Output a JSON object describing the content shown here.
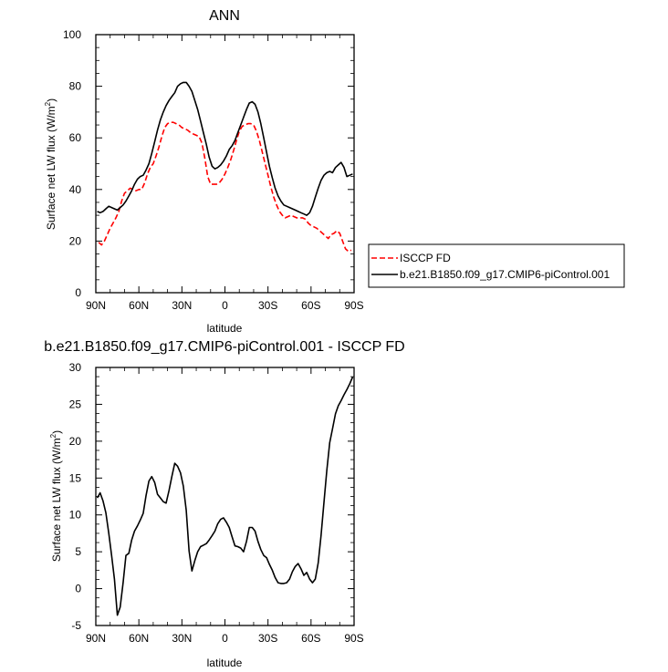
{
  "chart_data": [
    {
      "type": "line",
      "title": "ANN",
      "xlabel": "latitude",
      "ylabel": "Surface net LW flux (W/m²)",
      "ylabel_main": "Surface net LW flux (W/m",
      "ylabel_sup": "2",
      "ylabel_close": ")",
      "xlim": [
        90,
        -90
      ],
      "ylim": [
        0,
        100
      ],
      "xticks": [
        90,
        60,
        30,
        0,
        -30,
        -60,
        -90
      ],
      "xtick_labels": [
        "90N",
        "60N",
        "30N",
        "0",
        "30S",
        "60S",
        "90S"
      ],
      "yticks": [
        0,
        20,
        40,
        60,
        80,
        100
      ],
      "ytick_labels": [
        "0",
        "20",
        "40",
        "60",
        "80",
        "100"
      ],
      "legend": {
        "placement": "right",
        "entries": [
          "ISCCP FD",
          "b.e21.B1850.f09_g17.CMIP6-piControl.001"
        ]
      },
      "series": [
        {
          "name": "ISCCP FD",
          "color": "#ff0000",
          "dash": "dashed",
          "x": [
            88,
            86,
            84,
            82,
            80,
            78,
            76,
            74,
            72,
            70,
            68,
            66,
            64,
            62,
            60,
            58,
            56,
            54,
            52,
            50,
            48,
            46,
            44,
            42,
            40,
            38,
            36,
            34,
            32,
            30,
            28,
            26,
            24,
            22,
            20,
            18,
            16,
            14,
            12,
            10,
            8,
            6,
            4,
            2,
            0,
            -2,
            -4,
            -6,
            -8,
            -10,
            -12,
            -14,
            -16,
            -18,
            -20,
            -22,
            -24,
            -26,
            -28,
            -30,
            -32,
            -34,
            -36,
            -38,
            -40,
            -42,
            -44,
            -46,
            -48,
            -50,
            -52,
            -54,
            -56,
            -58,
            -60,
            -62,
            -64,
            -66,
            -68,
            -70,
            -72,
            -74,
            -76,
            -78,
            -80,
            -82,
            -84,
            -86,
            -88
          ],
          "values": [
            19.5,
            18.5,
            20.0,
            22.5,
            25.0,
            27.0,
            29.0,
            31.5,
            35.5,
            38.5,
            39.5,
            40.5,
            40.0,
            39.5,
            40.0,
            40.0,
            42.5,
            46.0,
            48.5,
            50.0,
            53.0,
            56.5,
            60.5,
            64.0,
            65.5,
            66.0,
            66.0,
            65.5,
            65.0,
            64.0,
            63.5,
            63.0,
            62.0,
            61.5,
            61.0,
            60.5,
            58.0,
            52.0,
            45.0,
            42.0,
            42.0,
            42.0,
            42.5,
            44.0,
            46.0,
            48.5,
            51.5,
            55.0,
            59.0,
            62.5,
            64.5,
            65.0,
            65.5,
            65.5,
            65.0,
            62.5,
            59.0,
            54.5,
            50.0,
            45.5,
            41.0,
            37.0,
            34.0,
            31.5,
            30.0,
            29.0,
            29.5,
            30.0,
            29.5,
            29.0,
            29.0,
            29.0,
            28.5,
            27.0,
            26.0,
            25.5,
            25.0,
            24.0,
            23.0,
            22.0,
            21.0,
            22.5,
            23.0,
            24.0,
            23.0,
            20.0,
            17.0,
            16.0,
            16.5
          ],
          "x_sparse": [
            89,
            87,
            85,
            83,
            81,
            79,
            77,
            75,
            73,
            71,
            69,
            67,
            65,
            63,
            61,
            59,
            57,
            55,
            53,
            51,
            49,
            47,
            45,
            43,
            41,
            39,
            37,
            35,
            33,
            31,
            29,
            27,
            25,
            23,
            21,
            19,
            17,
            15,
            13,
            11,
            9,
            7,
            5,
            3,
            1,
            -1,
            -3,
            -5,
            -7,
            -9,
            -11,
            -13,
            -15,
            -17,
            -19,
            -21,
            -23,
            -25,
            -27,
            -29,
            -31,
            -33,
            -35,
            -37,
            -39,
            -41,
            -43,
            -45,
            -47,
            -49,
            -51,
            -53,
            -55,
            -57,
            -59,
            -61,
            -63,
            -65,
            -67,
            -69,
            -71,
            -73,
            -75,
            -77,
            -79,
            -81,
            -83,
            -85,
            -87,
            -89
          ]
        },
        {
          "name": "b.e21.B1850.f09_g17.CMIP6-piControl.001",
          "color": "#000000",
          "dash": "solid",
          "x": [
            89,
            87,
            85,
            83,
            81,
            79,
            77,
            75,
            73,
            71,
            69,
            67,
            65,
            63,
            61,
            59,
            57,
            55,
            53,
            51,
            49,
            47,
            45,
            43,
            41,
            39,
            37,
            35,
            33,
            31,
            29,
            27,
            25,
            23,
            21,
            19,
            17,
            15,
            13,
            11,
            9,
            7,
            5,
            3,
            1,
            -1,
            -3,
            -5,
            -7,
            -9,
            -11,
            -13,
            -15,
            -17,
            -19,
            -21,
            -23,
            -25,
            -27,
            -29,
            -31,
            -33,
            -35,
            -37,
            -39,
            -41,
            -43,
            -45,
            -47,
            -49,
            -51,
            -53,
            -55,
            -57,
            -59,
            -61,
            -63,
            -65,
            -67,
            -69,
            -71,
            -73,
            -75,
            -77,
            -79,
            -81,
            -83,
            -85,
            -87,
            -89
          ],
          "values": [
            31.5,
            31.0,
            31.5,
            32.5,
            33.5,
            33.0,
            32.5,
            32.0,
            33.0,
            34.0,
            35.5,
            37.5,
            39.5,
            42.0,
            44.0,
            45.0,
            45.5,
            47.5,
            50.0,
            54.0,
            58.5,
            63.0,
            67.0,
            70.0,
            72.5,
            74.5,
            76.0,
            77.5,
            80.0,
            81.0,
            81.5,
            81.5,
            80.0,
            78.0,
            74.5,
            71.0,
            66.5,
            62.0,
            57.5,
            52.5,
            49.0,
            48.0,
            48.5,
            49.5,
            51.0,
            53.0,
            55.5,
            57.0,
            59.0,
            62.0,
            65.0,
            68.0,
            71.0,
            73.5,
            74.0,
            73.0,
            70.0,
            65.5,
            60.0,
            54.5,
            49.0,
            44.5,
            40.5,
            37.5,
            35.5,
            34.0,
            33.5,
            33.0,
            32.5,
            32.0,
            31.5,
            31.0,
            30.5,
            30.0,
            31.0,
            33.5,
            37.0,
            40.5,
            43.5,
            45.5,
            46.5,
            47.0,
            46.5,
            48.5,
            49.5,
            50.5,
            48.5,
            45.0,
            45.5,
            46.0
          ]
        }
      ]
    },
    {
      "type": "line",
      "title": "b.e21.B1850.f09_g17.CMIP6-piControl.001 - ISCCP FD",
      "xlabel": "latitude",
      "ylabel": "Surface net LW flux (W/m²)",
      "ylabel_main": "Surface net LW flux (W/m",
      "ylabel_sup": "2",
      "ylabel_close": ")",
      "xlim": [
        90,
        -90
      ],
      "ylim": [
        -5,
        30
      ],
      "xticks": [
        90,
        60,
        30,
        0,
        -30,
        -60,
        -90
      ],
      "xtick_labels": [
        "90N",
        "60N",
        "30N",
        "0",
        "30S",
        "60S",
        "90S"
      ],
      "yticks": [
        -5,
        0,
        5,
        10,
        15,
        20,
        25,
        30
      ],
      "ytick_labels": [
        "-5",
        "0",
        "5",
        "10",
        "15",
        "20",
        "25",
        "30"
      ],
      "series": [
        {
          "name": "b.e21.B1850.f09_g17.CMIP6-piControl.001 - ISCCP FD",
          "color": "#000000",
          "dash": "solid",
          "x": [
            89,
            87,
            85,
            83,
            81,
            79,
            77,
            75,
            73,
            71,
            69,
            67,
            65,
            63,
            61,
            59,
            57,
            55,
            53,
            51,
            49,
            47,
            45,
            43,
            41,
            39,
            37,
            35,
            33,
            31,
            29,
            27,
            25,
            23,
            21,
            19,
            17,
            15,
            13,
            11,
            9,
            7,
            5,
            3,
            1,
            -1,
            -3,
            -5,
            -7,
            -9,
            -11,
            -13,
            -15,
            -17,
            -19,
            -21,
            -23,
            -25,
            -27,
            -29,
            -31,
            -33,
            -35,
            -37,
            -39,
            -41,
            -43,
            -45,
            -47,
            -49,
            -51,
            -53,
            -55,
            -57,
            -59,
            -61,
            -63,
            -65,
            -67,
            -69,
            -71,
            -73,
            -75,
            -77,
            -79,
            -81,
            -83,
            -85,
            -87,
            -89
          ],
          "values": [
            12.3,
            13.0,
            11.9,
            10.3,
            7.5,
            4.5,
            1.3,
            -3.6,
            -2.5,
            0.8,
            4.5,
            4.8,
            6.6,
            7.8,
            8.5,
            9.3,
            10.2,
            12.6,
            14.6,
            15.2,
            14.4,
            12.8,
            12.3,
            11.8,
            11.6,
            13.3,
            15.2,
            17.0,
            16.6,
            15.7,
            13.9,
            10.6,
            5.1,
            2.4,
            3.8,
            5.0,
            5.7,
            5.9,
            6.1,
            6.6,
            7.2,
            7.8,
            8.8,
            9.4,
            9.6,
            9.0,
            8.3,
            7.0,
            5.8,
            5.7,
            5.5,
            5.0,
            6.4,
            8.3,
            8.3,
            7.8,
            6.4,
            5.3,
            4.5,
            4.2,
            3.3,
            2.5,
            1.5,
            0.8,
            0.7,
            0.7,
            0.8,
            1.3,
            2.3,
            3.0,
            3.4,
            2.7,
            1.8,
            2.2,
            1.3,
            0.8,
            1.3,
            3.5,
            7.2,
            11.7,
            16.0,
            19.8,
            21.7,
            23.7,
            24.8,
            25.5,
            26.3,
            27.0,
            27.8,
            28.7
          ]
        }
      ]
    }
  ]
}
